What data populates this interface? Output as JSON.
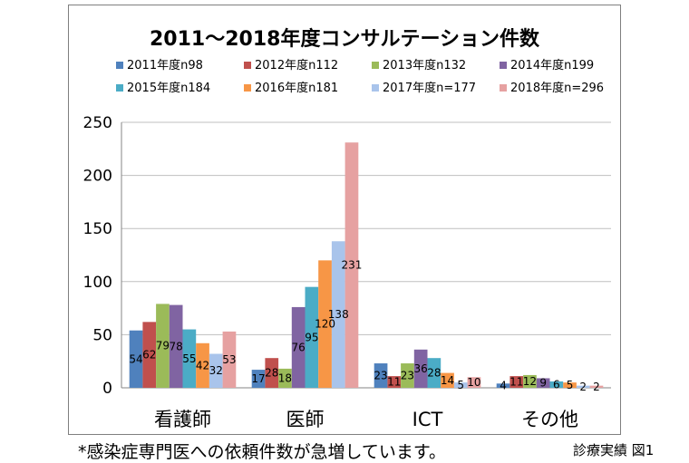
{
  "chart_data": {
    "type": "bar",
    "title": "2011～2018年度コンサルテーション件数",
    "categories": [
      "看護師",
      "医師",
      "ICT",
      "その他"
    ],
    "ylim": [
      0,
      250
    ],
    "yticks": [
      0,
      50,
      100,
      150,
      200,
      250
    ],
    "grid": true,
    "legend": "top",
    "series": [
      {
        "name": "2011年度n98",
        "color": "#4f81bd",
        "values": [
          54,
          17,
          23,
          4
        ]
      },
      {
        "name": "2012年度n112",
        "color": "#c0504d",
        "values": [
          62,
          28,
          11,
          11
        ]
      },
      {
        "name": "2013年度n132",
        "color": "#9bbb59",
        "values": [
          79,
          18,
          23,
          12
        ]
      },
      {
        "name": "2014年度n199",
        "color": "#8064a2",
        "values": [
          78,
          76,
          36,
          9
        ]
      },
      {
        "name": "2015年度n184",
        "color": "#4bacc6",
        "values": [
          55,
          95,
          28,
          6
        ]
      },
      {
        "name": "2016年度n181",
        "color": "#f79646",
        "values": [
          42,
          120,
          14,
          5
        ]
      },
      {
        "name": "2017年度n=177",
        "color": "#a9c4eb",
        "values": [
          32,
          138,
          5,
          2
        ]
      },
      {
        "name": "2018年度n=296",
        "color": "#e6a1a1",
        "values": [
          53,
          231,
          10,
          2
        ]
      }
    ],
    "data_labels": [
      [
        "54",
        "62",
        "79",
        "78",
        "55",
        "42",
        "32",
        "53"
      ],
      [
        "17",
        "28",
        "18",
        "76",
        "95",
        "120",
        "138",
        "231"
      ],
      [
        "23",
        "11",
        "23",
        "36",
        "28",
        "14",
        "5",
        "10"
      ],
      [
        "4",
        "11",
        "12",
        "9",
        "6",
        "5",
        "2",
        "2"
      ]
    ]
  },
  "footnote": "*感染症専門医への依頼件数が急増しています。",
  "caption": "診療実績 図1"
}
